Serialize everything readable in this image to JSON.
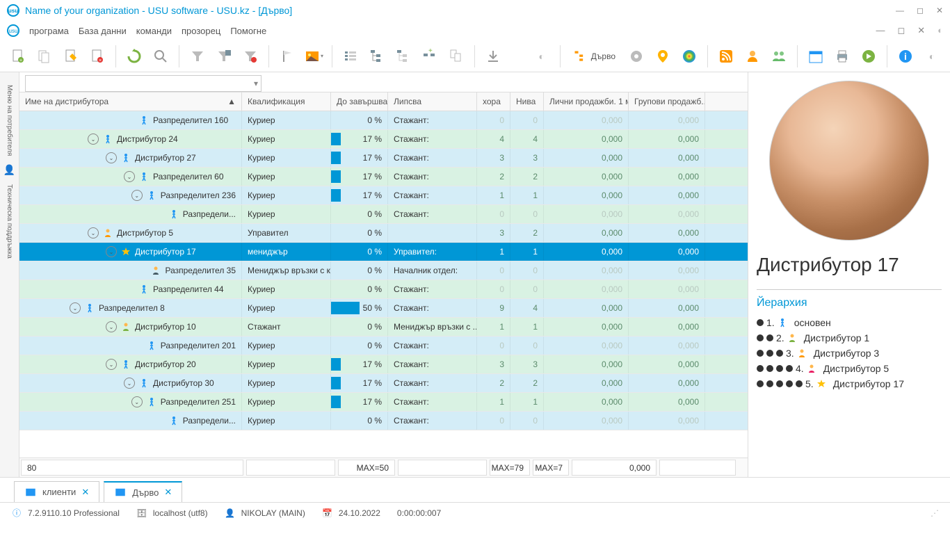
{
  "title": "Name of your organization - USU software - USU.kz - [Дърво]",
  "menu": [
    "програма",
    "База данни",
    "команди",
    "прозорец",
    "Помогне"
  ],
  "tree_label": "Дърво",
  "sidetabs": [
    "Меню на потребителя",
    "Техническа поддръжка"
  ],
  "columns": {
    "name": "Име на дистрибутора",
    "qual": "Квалификация",
    "prog": "До завършва...",
    "miss": "Липсва",
    "ppl": "хора",
    "lvl": "Нива",
    "pers": "Лични продажби. 1 м...",
    "grp": "Групови продажб..."
  },
  "rows": [
    {
      "cls": "blue",
      "ind": 150,
      "exp": false,
      "icon": "walk",
      "name": "Разпределител 160",
      "qual": "Куриер",
      "pct": 0,
      "miss": "Стажант:",
      "ppl": 0,
      "lvl": 0,
      "pers": "0,000",
      "grp": "0,000",
      "zero": true
    },
    {
      "cls": "green",
      "ind": 98,
      "exp": true,
      "icon": "walk",
      "name": "Дистрибутор 24",
      "qual": "Куриер",
      "pct": 17,
      "miss": "Стажант:",
      "ppl": 4,
      "lvl": 4,
      "pers": "0,000",
      "grp": "0,000"
    },
    {
      "cls": "blue",
      "ind": 124,
      "exp": true,
      "icon": "walk",
      "name": "Дистрибутор 27",
      "qual": "Куриер",
      "pct": 17,
      "miss": "Стажант:",
      "ppl": 3,
      "lvl": 3,
      "pers": "0,000",
      "grp": "0,000"
    },
    {
      "cls": "green",
      "ind": 150,
      "exp": true,
      "icon": "walk",
      "name": "Разпределител 60",
      "qual": "Куриер",
      "pct": 17,
      "miss": "Стажант:",
      "ppl": 2,
      "lvl": 2,
      "pers": "0,000",
      "grp": "0,000"
    },
    {
      "cls": "blue",
      "ind": 176,
      "exp": true,
      "icon": "walk",
      "name": "Разпределител 236",
      "qual": "Куриер",
      "pct": 17,
      "miss": "Стажант:",
      "ppl": 1,
      "lvl": 1,
      "pers": "0,000",
      "grp": "0,000"
    },
    {
      "cls": "green",
      "ind": 228,
      "exp": false,
      "icon": "walk",
      "name": "Разпредели...",
      "qual": "Куриер",
      "pct": 0,
      "miss": "Стажант:",
      "ppl": 0,
      "lvl": 0,
      "pers": "0,000",
      "grp": "0,000",
      "zero": true
    },
    {
      "cls": "blue",
      "ind": 98,
      "exp": true,
      "icon": "mgr",
      "name": "Дистрибутор 5",
      "qual": "Управител",
      "pct": 0,
      "miss": "",
      "ppl": 3,
      "lvl": 2,
      "pers": "0,000",
      "grp": "0,000"
    },
    {
      "cls": "sel",
      "ind": 124,
      "exp": true,
      "icon": "star",
      "name": "Дистрибутор 17",
      "qual": "мениджър",
      "pct": 0,
      "miss": "Управител:",
      "ppl": 1,
      "lvl": 1,
      "pers": "0,000",
      "grp": "0,000"
    },
    {
      "cls": "blue",
      "ind": 176,
      "exp": false,
      "icon": "suit",
      "name": "Разпределител 35",
      "qual": "Мениджър връзки с к...",
      "pct": 0,
      "miss": "Началник отдел:",
      "ppl": 0,
      "lvl": 0,
      "pers": "0,000",
      "grp": "0,000",
      "zero": true
    },
    {
      "cls": "green",
      "ind": 150,
      "exp": false,
      "icon": "walk",
      "name": "Разпределител 44",
      "qual": "Куриер",
      "pct": 0,
      "miss": "Стажант:",
      "ppl": 0,
      "lvl": 0,
      "pers": "0,000",
      "grp": "0,000",
      "zero": true
    },
    {
      "cls": "blue",
      "ind": 72,
      "exp": true,
      "icon": "walk",
      "name": "Разпределител 8",
      "qual": "Куриер",
      "pct": 50,
      "miss": "Стажант:",
      "ppl": 9,
      "lvl": 4,
      "pers": "0,000",
      "grp": "0,000"
    },
    {
      "cls": "green",
      "ind": 124,
      "exp": true,
      "icon": "grn",
      "name": "Дистрибутор 10",
      "qual": "Стажант",
      "pct": 0,
      "miss": "Мениджър връзки с ...",
      "ppl": 1,
      "lvl": 1,
      "pers": "0,000",
      "grp": "0,000"
    },
    {
      "cls": "blue",
      "ind": 176,
      "exp": false,
      "icon": "walk",
      "name": "Разпределител 201",
      "qual": "Куриер",
      "pct": 0,
      "miss": "Стажант:",
      "ppl": 0,
      "lvl": 0,
      "pers": "0,000",
      "grp": "0,000",
      "zero": true
    },
    {
      "cls": "green",
      "ind": 124,
      "exp": true,
      "icon": "walk",
      "name": "Дистрибутор 20",
      "qual": "Куриер",
      "pct": 17,
      "miss": "Стажант:",
      "ppl": 3,
      "lvl": 3,
      "pers": "0,000",
      "grp": "0,000"
    },
    {
      "cls": "blue",
      "ind": 150,
      "exp": true,
      "icon": "walk",
      "name": "Дистрибутор 30",
      "qual": "Куриер",
      "pct": 17,
      "miss": "Стажант:",
      "ppl": 2,
      "lvl": 2,
      "pers": "0,000",
      "grp": "0,000"
    },
    {
      "cls": "green",
      "ind": 176,
      "exp": true,
      "icon": "walk",
      "name": "Разпределител 251",
      "qual": "Куриер",
      "pct": 17,
      "miss": "Стажант:",
      "ppl": 1,
      "lvl": 1,
      "pers": "0,000",
      "grp": "0,000"
    },
    {
      "cls": "blue",
      "ind": 228,
      "exp": false,
      "icon": "walk",
      "name": "Разпредели...",
      "qual": "Куриер",
      "pct": 0,
      "miss": "Стажант:",
      "ppl": 0,
      "lvl": 0,
      "pers": "0,000",
      "grp": "0,000",
      "zero": true
    }
  ],
  "footer": {
    "count": "80",
    "maxprog": "MAX=50",
    "maxppl": "MAX=79",
    "maxlvl": "MAX=7",
    "pers": "0,000"
  },
  "right": {
    "title": "Дистрибутор 17",
    "hierarchy_label": "Йерархия",
    "hierarchy": [
      {
        "dots": 1,
        "n": "1.",
        "icon": "walk",
        "label": "основен"
      },
      {
        "dots": 2,
        "n": "2.",
        "icon": "grn",
        "label": "Дистрибутор 1"
      },
      {
        "dots": 3,
        "n": "3.",
        "icon": "mgr",
        "label": "Дистрибутор 3"
      },
      {
        "dots": 4,
        "n": "4.",
        "icon": "mgr2",
        "label": "Дистрибутор 5"
      },
      {
        "dots": 5,
        "n": "5.",
        "icon": "star",
        "label": "Дистрибутор 17"
      }
    ]
  },
  "bottom_tabs": [
    {
      "label": "клиенти",
      "active": false
    },
    {
      "label": "Дърво",
      "active": true
    }
  ],
  "status": {
    "version": "7.2.9110.10 Professional",
    "db": "localhost (utf8)",
    "user": "NIKOLAY (MAIN)",
    "date": "24.10.2022",
    "time": "0:00:00:007"
  },
  "colors": {
    "accent": "#0097d6",
    "row_blue": "#d4edf7",
    "row_green": "#d9f2e3"
  }
}
